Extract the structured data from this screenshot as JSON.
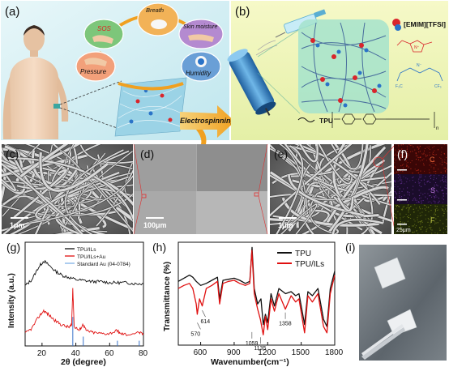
{
  "panel_labels": {
    "a": "(a)",
    "b": "(b)",
    "c": "(c)",
    "d": "(d)",
    "e": "(e)",
    "f": "(f)",
    "g": "(g)",
    "h": "(h)",
    "i": "(i)"
  },
  "panel_a": {
    "bubbles": {
      "sos": "SOS",
      "breath": "Breath",
      "skin": "Skin moisture",
      "pressure": "Pressure",
      "humidity": "Humidity"
    },
    "arrow_label": "Electrospinning"
  },
  "panel_b": {
    "il_label": "[EMIM][TFSI]",
    "tpu_label": "TPU",
    "formula_n": "n"
  },
  "sem": {
    "c_scale": "1μm",
    "d_scale": "100μm",
    "e_scale": "1μm",
    "f_scale": "25μm"
  },
  "eds": {
    "c": "C",
    "s": "S",
    "f": "F"
  },
  "colors": {
    "tpu_black": "#111111",
    "red": "#e01010",
    "blue": "#3a73c8"
  },
  "chart_data": [
    {
      "type": "line",
      "panel": "(g)",
      "xlabel": "2θ (degree)",
      "ylabel": "Intensity (a.u.)",
      "xlim": [
        10,
        80
      ],
      "xticks": [
        "20",
        "40",
        "60",
        "80"
      ],
      "legend": [
        "TPU/ILs",
        "TPU/ILs+Au",
        "Standard Au (04-0784)"
      ],
      "legend_placement": "top-right",
      "series": [
        {
          "name": "TPU/ILs",
          "x": [
            10,
            14,
            18,
            21,
            24,
            28,
            32,
            36,
            40,
            45,
            50,
            55,
            60,
            65,
            70,
            75,
            80
          ],
          "y": [
            0.58,
            0.64,
            0.76,
            0.82,
            0.78,
            0.72,
            0.68,
            0.66,
            0.64,
            0.63,
            0.62,
            0.62,
            0.61,
            0.61,
            0.61,
            0.6,
            0.6
          ]
        },
        {
          "name": "TPU/ILs+Au",
          "x": [
            10,
            14,
            18,
            21,
            24,
            28,
            32,
            36,
            37.5,
            38.2,
            39,
            42,
            44.4,
            46,
            50,
            55,
            60,
            64.6,
            66,
            70,
            77.5,
            80
          ],
          "y": [
            0.12,
            0.17,
            0.28,
            0.34,
            0.3,
            0.24,
            0.2,
            0.18,
            0.2,
            0.56,
            0.19,
            0.15,
            0.21,
            0.15,
            0.13,
            0.12,
            0.12,
            0.15,
            0.12,
            0.11,
            0.13,
            0.11
          ]
        },
        {
          "name": "Standard Au (04-0784)",
          "x": [
            38.2,
            44.4,
            64.6,
            77.5
          ],
          "y": [
            0.28,
            0.09,
            0.05,
            0.05
          ]
        }
      ]
    },
    {
      "type": "line",
      "panel": "(h)",
      "xlabel": "Wavenumber(cm⁻¹)",
      "ylabel": "Transmittance (%)",
      "xlim": [
        400,
        1800
      ],
      "xticks": [
        "600",
        "900",
        "1200",
        "1500",
        "1800"
      ],
      "legend": [
        "TPU",
        "TPU/ILs"
      ],
      "legend_placement": "top-right",
      "annotations": [
        "570",
        "614",
        "1059",
        "1135",
        "1358"
      ],
      "series": [
        {
          "name": "TPU",
          "x": [
            400,
            450,
            500,
            530,
            560,
            600,
            650,
            700,
            750,
            770,
            800,
            850,
            900,
            950,
            1000,
            1040,
            1060,
            1080,
            1110,
            1140,
            1160,
            1180,
            1200,
            1230,
            1260,
            1300,
            1360,
            1410,
            1450,
            1480,
            1530,
            1560,
            1600,
            1650,
            1700,
            1730,
            1760,
            1800
          ],
          "y": [
            0.62,
            0.65,
            0.68,
            0.66,
            0.62,
            0.58,
            0.6,
            0.63,
            0.66,
            0.45,
            0.63,
            0.64,
            0.65,
            0.63,
            0.6,
            0.62,
            0.95,
            0.55,
            0.4,
            0.45,
            0.2,
            0.3,
            0.22,
            0.5,
            0.38,
            0.55,
            0.5,
            0.52,
            0.48,
            0.5,
            0.2,
            0.52,
            0.48,
            0.55,
            0.25,
            0.18,
            0.55,
            0.72
          ]
        },
        {
          "name": "TPU/ILs",
          "x": [
            400,
            450,
            500,
            530,
            560,
            570,
            590,
            614,
            650,
            700,
            750,
            770,
            800,
            850,
            900,
            950,
            1000,
            1040,
            1059,
            1080,
            1110,
            1135,
            1160,
            1180,
            1200,
            1230,
            1260,
            1300,
            1358,
            1410,
            1450,
            1480,
            1530,
            1560,
            1600,
            1650,
            1700,
            1730,
            1760,
            1800
          ],
          "y": [
            0.55,
            0.58,
            0.6,
            0.55,
            0.4,
            0.3,
            0.45,
            0.38,
            0.55,
            0.58,
            0.62,
            0.4,
            0.6,
            0.62,
            0.63,
            0.6,
            0.58,
            0.6,
            0.92,
            0.5,
            0.35,
            0.25,
            0.1,
            0.28,
            0.15,
            0.45,
            0.33,
            0.5,
            0.35,
            0.48,
            0.42,
            0.45,
            0.12,
            0.48,
            0.42,
            0.5,
            0.18,
            0.12,
            0.5,
            0.68
          ]
        }
      ]
    }
  ]
}
